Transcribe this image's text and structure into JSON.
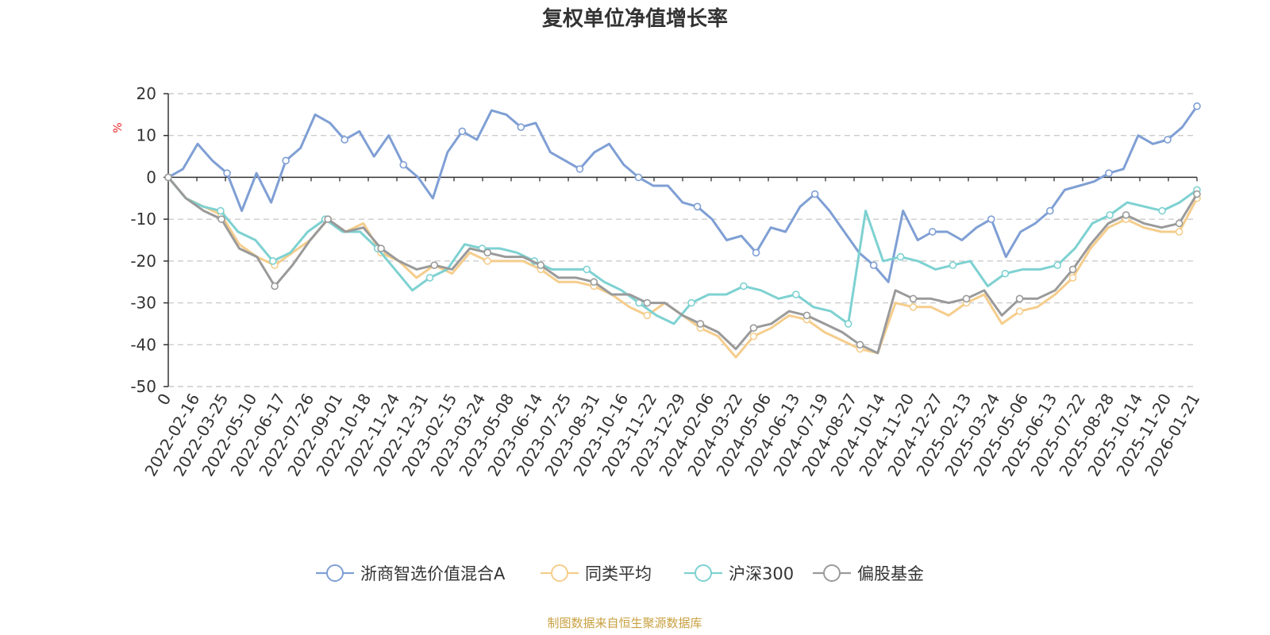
{
  "chart_data": {
    "type": "line",
    "title": "复权单位净值增长率",
    "ylabel": "%",
    "ylim": [
      -50,
      20
    ],
    "yticks": [
      20,
      10,
      0,
      -10,
      -20,
      -30,
      -40,
      -50
    ],
    "x_tick_labels": [
      "0",
      "2022-02-16",
      "2022-03-25",
      "2022-05-10",
      "2022-06-17",
      "2022-07-26",
      "2022-09-01",
      "2022-10-18",
      "2022-11-24",
      "2022-12-31",
      "2023-02-15",
      "2023-03-24",
      "2023-05-08",
      "2023-06-14",
      "2023-07-25",
      "2023-08-31",
      "2023-10-16",
      "2023-11-22",
      "2023-12-29",
      "2024-02-06",
      "2024-03-22",
      "2024-05-06",
      "2024-06-13",
      "2024-07-19",
      "2024-08-27",
      "2024-10-14",
      "2024-11-20",
      "2024-12-27",
      "2025-02-13",
      "2025-03-24",
      "2025-05-06",
      "2025-06-13",
      "2025-07-22",
      "2025-08-28",
      "2025-10-14",
      "2025-11-20",
      "2026-01-21"
    ],
    "series": [
      {
        "name": "浙商智选价值混合A",
        "color": "#7f9fd4",
        "values": [
          0,
          2,
          8,
          4,
          1,
          -8,
          1,
          -6,
          4,
          7,
          15,
          13,
          9,
          11,
          5,
          10,
          3,
          0,
          -5,
          6,
          11,
          9,
          16,
          15,
          12,
          13,
          6,
          4,
          2,
          6,
          8,
          3,
          0,
          -2,
          -2,
          -6,
          -7,
          -10,
          -15,
          -14,
          -18,
          -12,
          -13,
          -7,
          -4,
          -8,
          -13,
          -18,
          -21,
          -25,
          -8,
          -15,
          -13,
          -13,
          -15,
          -12,
          -10,
          -19,
          -13,
          -11,
          -8,
          -3,
          -2,
          -1,
          1,
          2,
          10,
          8,
          9,
          12,
          17
        ]
      },
      {
        "name": "同类平均",
        "color": "#f5cd8c",
        "values": [
          0,
          -5,
          -7,
          -9,
          -16,
          -19,
          -21,
          -18,
          -15,
          -10,
          -13,
          -11,
          -18,
          -20,
          -24,
          -21,
          -23,
          -18,
          -20,
          -20,
          -20,
          -22,
          -25,
          -25,
          -26,
          -28,
          -31,
          -33,
          -30,
          -33,
          -36,
          -38,
          -43,
          -38,
          -36,
          -33,
          -34,
          -37,
          -39,
          -41,
          -42,
          -30,
          -31,
          -31,
          -33,
          -30,
          -28,
          -35,
          -32,
          -31,
          -28,
          -24,
          -17,
          -12,
          -10,
          -12,
          -13,
          -13,
          -5
        ]
      },
      {
        "name": "沪深300",
        "color": "#7ed1d1",
        "values": [
          0,
          -5,
          -7,
          -8,
          -13,
          -15,
          -20,
          -18,
          -13,
          -10,
          -13,
          -13,
          -17,
          -22,
          -27,
          -24,
          -22,
          -16,
          -17,
          -17,
          -18,
          -20,
          -22,
          -22,
          -22,
          -25,
          -27,
          -30,
          -33,
          -35,
          -30,
          -28,
          -28,
          -26,
          -27,
          -29,
          -28,
          -31,
          -32,
          -35,
          -8,
          -20,
          -19,
          -20,
          -22,
          -21,
          -20,
          -26,
          -23,
          -22,
          -22,
          -21,
          -17,
          -11,
          -9,
          -6,
          -7,
          -8,
          -6,
          -3
        ]
      },
      {
        "name": "偏股基金",
        "color": "#9a9a9a",
        "values": [
          0,
          -5,
          -8,
          -10,
          -17,
          -19,
          -26,
          -21,
          -15,
          -10,
          -13,
          -12,
          -17,
          -20,
          -22,
          -21,
          -22,
          -17,
          -18,
          -19,
          -19,
          -21,
          -24,
          -24,
          -25,
          -28,
          -28,
          -30,
          -30,
          -33,
          -35,
          -37,
          -41,
          -36,
          -35,
          -32,
          -33,
          -35,
          -37,
          -40,
          -42,
          -27,
          -29,
          -29,
          -30,
          -29,
          -27,
          -33,
          -29,
          -29,
          -27,
          -22,
          -16,
          -11,
          -9,
          -11,
          -12,
          -11,
          -4
        ]
      }
    ]
  },
  "source_note": "制图数据来自恒生聚源数据库"
}
